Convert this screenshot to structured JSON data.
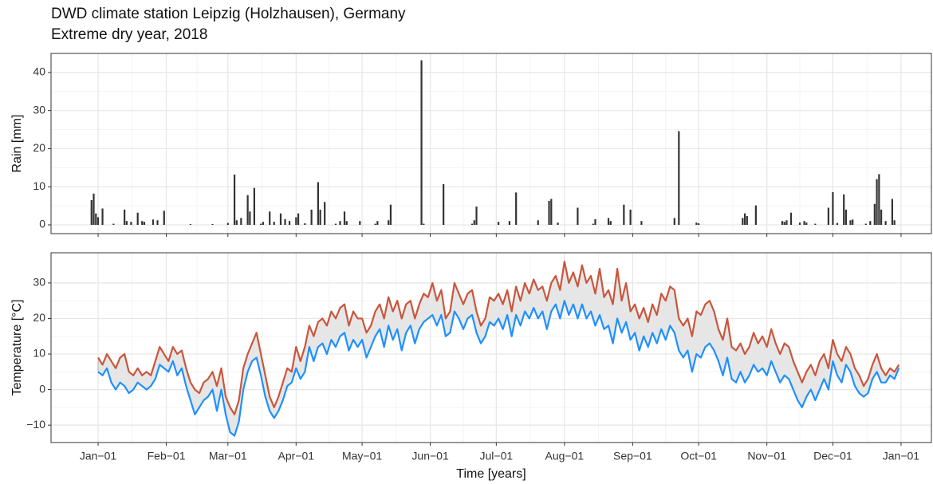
{
  "chart_data": [
    {
      "type": "bar",
      "title": "DWD climate station Leipzig (Holzhausen), Germany",
      "subtitle": "Extreme dry year, 2018",
      "y_label": "Rain [mm]",
      "color": "#333333",
      "grid": true,
      "xlim": [
        -21.4,
        378.8
      ],
      "xticks": [
        0,
        31,
        59,
        90,
        120,
        151,
        181,
        212,
        243,
        273,
        304,
        334,
        365
      ],
      "ylim": [
        -2.3,
        45
      ],
      "yticks": [
        0,
        10,
        20,
        30,
        40
      ],
      "x": [
        -3,
        -2,
        -1,
        0,
        2,
        7,
        12,
        13,
        15,
        18,
        20,
        21,
        25,
        27,
        30,
        42,
        52,
        59,
        62,
        63,
        65,
        68,
        69,
        71,
        74,
        75,
        78,
        80,
        83,
        85,
        87,
        90,
        91,
        94,
        97,
        100,
        101,
        103,
        108,
        110,
        112,
        113,
        119,
        126,
        127,
        132,
        133,
        147,
        148,
        157,
        170,
        171,
        172,
        182,
        187,
        190,
        200,
        205,
        206,
        209,
        218,
        225,
        226,
        232,
        233,
        239,
        242,
        247,
        262,
        264,
        272,
        273,
        293,
        294,
        295,
        299,
        311,
        312,
        313,
        315,
        319,
        321,
        322,
        326,
        332,
        334,
        336,
        339,
        340,
        342,
        343,
        349,
        351,
        353,
        354,
        355,
        356,
        358,
        361,
        362
      ],
      "values": [
        6.5,
        8.2,
        3,
        2,
        4.3,
        0.3,
        4,
        1,
        0.8,
        3.2,
        1,
        0.8,
        1.4,
        1.2,
        3.7,
        0.2,
        0.2,
        0.5,
        13.2,
        1.2,
        1.8,
        7.8,
        3.5,
        9.7,
        0.3,
        0.8,
        3.5,
        0.8,
        3,
        1.5,
        1,
        2,
        3,
        0.4,
        4,
        11.2,
        4,
        6,
        0.3,
        1,
        3.5,
        1,
        1,
        0.3,
        1,
        1.2,
        5.3,
        43.2,
        0.3,
        10.7,
        0.3,
        1.2,
        4.8,
        0.8,
        1,
        8.5,
        1.2,
        6.3,
        6.8,
        0.6,
        4.5,
        0.3,
        1.5,
        1.8,
        1,
        5.3,
        4,
        1,
        1.8,
        24.6,
        0.6,
        0.4,
        1.8,
        3,
        2.3,
        5.1,
        1,
        0.8,
        1.2,
        3.2,
        0.6,
        1,
        0.6,
        0.3,
        4.5,
        8.6,
        0.5,
        8,
        4,
        1.2,
        1.4,
        0.3,
        1,
        5.5,
        12,
        13.3,
        4,
        1,
        6.8,
        1.2
      ]
    },
    {
      "type": "line",
      "y_label": "Temperature [°C]",
      "x_label": "Time [years]",
      "grid": true,
      "ribbon_color": "#e6e6e6",
      "xlim": [
        -21.4,
        378.8
      ],
      "xticks": [
        {
          "value": 0,
          "label": "Jan−01"
        },
        {
          "value": 31,
          "label": "Feb−01"
        },
        {
          "value": 59,
          "label": "Mar−01"
        },
        {
          "value": 90,
          "label": "Apr−01"
        },
        {
          "value": 120,
          "label": "May−01"
        },
        {
          "value": 151,
          "label": "Jun−01"
        },
        {
          "value": 181,
          "label": "Jul−01"
        },
        {
          "value": 212,
          "label": "Aug−01"
        },
        {
          "value": 243,
          "label": "Sep−01"
        },
        {
          "value": 273,
          "label": "Oct−01"
        },
        {
          "value": 304,
          "label": "Nov−01"
        },
        {
          "value": 334,
          "label": "Dec−01"
        },
        {
          "value": 365,
          "label": "Jan−01"
        }
      ],
      "ylim": [
        -14.9,
        38.5
      ],
      "yticks": [
        {
          "value": -10,
          "label": "−10"
        },
        0,
        10,
        20,
        30
      ],
      "x": [
        0,
        2,
        4,
        6,
        8,
        10,
        12,
        14,
        16,
        18,
        20,
        22,
        24,
        26,
        28,
        30,
        32,
        34,
        36,
        38,
        40,
        42,
        44,
        46,
        48,
        50,
        52,
        54,
        56,
        58,
        60,
        62,
        64,
        66,
        68,
        70,
        72,
        74,
        76,
        78,
        80,
        82,
        84,
        86,
        88,
        90,
        92,
        94,
        96,
        98,
        100,
        102,
        104,
        106,
        108,
        110,
        112,
        114,
        116,
        118,
        120,
        122,
        124,
        126,
        128,
        130,
        132,
        134,
        136,
        138,
        140,
        142,
        144,
        146,
        148,
        150,
        152,
        154,
        156,
        158,
        160,
        162,
        164,
        166,
        168,
        170,
        172,
        174,
        176,
        178,
        180,
        182,
        184,
        186,
        188,
        190,
        192,
        194,
        196,
        198,
        200,
        202,
        204,
        206,
        208,
        210,
        212,
        214,
        216,
        218,
        220,
        222,
        224,
        226,
        228,
        230,
        232,
        234,
        236,
        238,
        240,
        242,
        244,
        246,
        248,
        250,
        252,
        254,
        256,
        258,
        260,
        262,
        264,
        266,
        268,
        270,
        272,
        274,
        276,
        278,
        280,
        282,
        284,
        286,
        288,
        290,
        292,
        294,
        296,
        298,
        300,
        302,
        304,
        306,
        308,
        310,
        312,
        314,
        316,
        318,
        320,
        322,
        324,
        326,
        328,
        330,
        332,
        334,
        336,
        338,
        340,
        342,
        344,
        346,
        348,
        350,
        352,
        354,
        356,
        358,
        360,
        362,
        364
      ],
      "series": [
        {
          "color": "#c9563c",
          "values": [
            9,
            7,
            10,
            8,
            6,
            9,
            10,
            5,
            4,
            6,
            4,
            5,
            4,
            8,
            12,
            10,
            8,
            12,
            10,
            11,
            6,
            2,
            0,
            -1,
            2,
            3,
            5,
            1,
            6,
            -2,
            -5,
            -7,
            -3,
            6,
            10,
            13,
            16,
            10,
            4,
            -2,
            -5,
            -2,
            2,
            6,
            5,
            12,
            8,
            12,
            18,
            15,
            19,
            20,
            18,
            22,
            20,
            23,
            24,
            18,
            22,
            20,
            20,
            16,
            18,
            22,
            24,
            20,
            26,
            22,
            25,
            20,
            24,
            25,
            20,
            24,
            27,
            26,
            30,
            25,
            28,
            20,
            22,
            30,
            27,
            24,
            27,
            28,
            22,
            18,
            20,
            26,
            25,
            27,
            24,
            28,
            22,
            29,
            25,
            30,
            27,
            31,
            28,
            29,
            25,
            30,
            32,
            28,
            36,
            30,
            33,
            29,
            35,
            30,
            32,
            27,
            34,
            26,
            28,
            24,
            34,
            25,
            30,
            22,
            24,
            20,
            23,
            19,
            24,
            21,
            27,
            25,
            29,
            28,
            20,
            18,
            20,
            15,
            22,
            21,
            24,
            25,
            22,
            17,
            14,
            20,
            12,
            11,
            13,
            10,
            12,
            16,
            13,
            15,
            12,
            17,
            13,
            10,
            13,
            12,
            8,
            5,
            2,
            5,
            7,
            4,
            8,
            10,
            6,
            14,
            10,
            8,
            12,
            10,
            6,
            4,
            1,
            3,
            7,
            10,
            6,
            4,
            6,
            5,
            7
          ]
        },
        {
          "color": "#1e90ff",
          "values": [
            5,
            4,
            6,
            2,
            0,
            2,
            1,
            -1,
            0,
            2,
            1,
            0,
            1,
            3,
            7,
            6,
            5,
            8,
            4,
            6,
            1,
            -3,
            -7,
            -5,
            -3,
            -2,
            0,
            -6,
            0,
            -7,
            -12,
            -13,
            -9,
            0,
            5,
            8,
            9,
            4,
            -2,
            -6,
            -8,
            -6,
            -3,
            1,
            2,
            6,
            3,
            5,
            12,
            8,
            12,
            13,
            10,
            14,
            12,
            15,
            16,
            11,
            14,
            12,
            14,
            9,
            12,
            15,
            17,
            12,
            18,
            14,
            17,
            11,
            16,
            18,
            13,
            17,
            19,
            20,
            21,
            18,
            21,
            15,
            16,
            22,
            20,
            17,
            20,
            21,
            16,
            13,
            15,
            19,
            18,
            20,
            17,
            21,
            15,
            21,
            18,
            22,
            20,
            23,
            20,
            22,
            17,
            22,
            24,
            20,
            25,
            21,
            24,
            20,
            24,
            20,
            22,
            18,
            21,
            17,
            18,
            13,
            20,
            16,
            19,
            14,
            16,
            11,
            15,
            12,
            16,
            13,
            17,
            14,
            18,
            16,
            11,
            9,
            11,
            5,
            10,
            9,
            12,
            13,
            11,
            8,
            4,
            9,
            3,
            2,
            5,
            2,
            4,
            7,
            5,
            6,
            4,
            8,
            5,
            2,
            4,
            3,
            0,
            -3,
            -5,
            -2,
            0,
            -3,
            0,
            3,
            0,
            8,
            4,
            2,
            7,
            5,
            1,
            -1,
            -2,
            -1,
            3,
            5,
            2,
            2,
            4,
            3,
            6
          ]
        }
      ]
    }
  ]
}
